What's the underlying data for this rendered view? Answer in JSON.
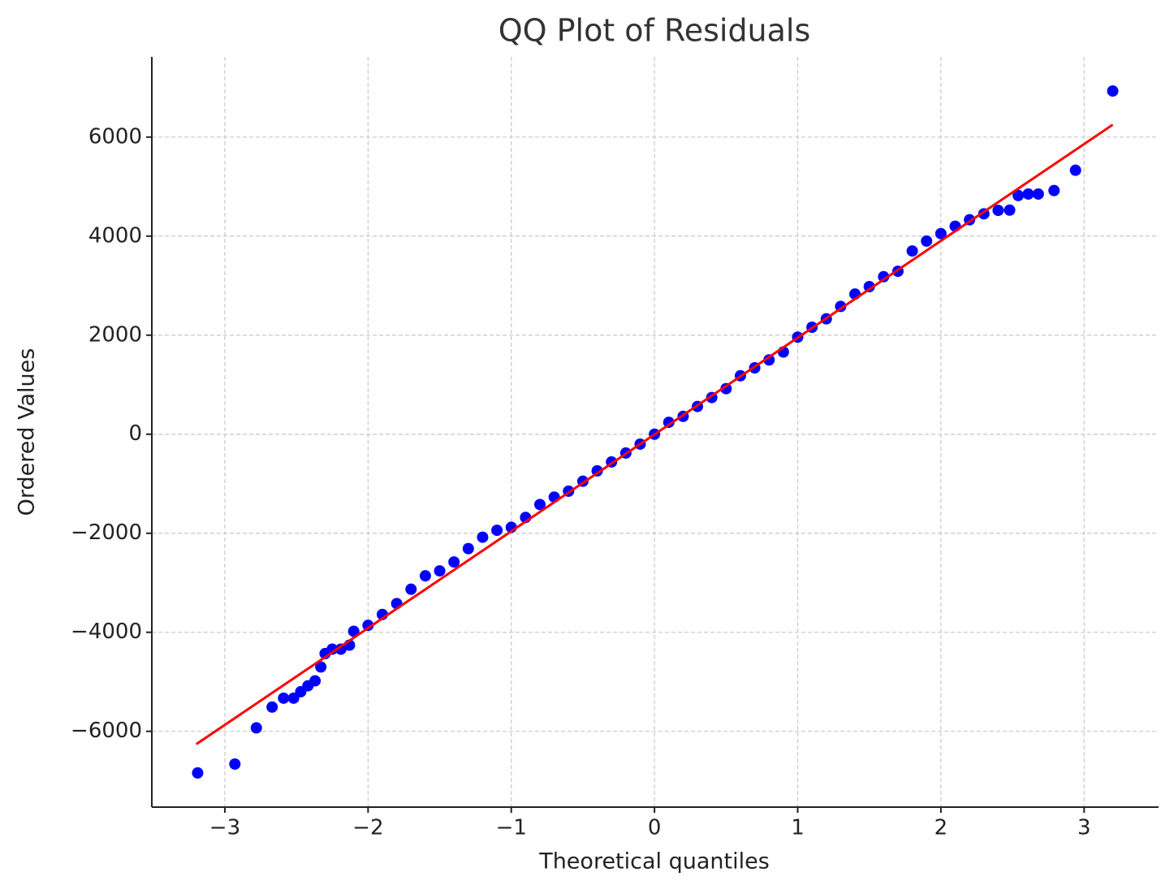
{
  "chart_data": {
    "type": "scatter",
    "title": "QQ Plot of Residuals",
    "x_label": "Theoretical quantiles",
    "y_label": "Ordered Values",
    "xlim": [
      -3.51,
      3.52
    ],
    "ylim": [
      -7530,
      7620
    ],
    "xticks": [
      {
        "value": -3,
        "label": "−3"
      },
      {
        "value": -2,
        "label": "−2"
      },
      {
        "value": -1,
        "label": "−1"
      },
      0,
      1,
      2,
      3
    ],
    "yticks": [
      {
        "value": -6000,
        "label": "−6000"
      },
      {
        "value": -4000,
        "label": "−4000"
      },
      {
        "value": -2000,
        "label": "−2000"
      },
      0,
      2000,
      4000,
      6000
    ],
    "grid": true,
    "points": {
      "color": "#0000ff",
      "x": [
        -3.19,
        -2.93,
        -2.78,
        -2.67,
        -2.59,
        -2.52,
        -2.47,
        -2.42,
        -2.37,
        -2.33,
        -2.3,
        -2.25,
        -2.19,
        -2.13,
        -2.1,
        -2.0,
        -1.9,
        -1.8,
        -1.7,
        -1.6,
        -1.5,
        -1.4,
        -1.3,
        -1.2,
        -1.1,
        -1.0,
        -0.9,
        -0.8,
        -0.7,
        -0.6,
        -0.5,
        -0.4,
        -0.3,
        -0.2,
        -0.1,
        0,
        0.1,
        0.2,
        0.3,
        0.4,
        0.5,
        0.6,
        0.7,
        0.8,
        0.9,
        1.0,
        1.1,
        1.2,
        1.3,
        1.4,
        1.5,
        1.6,
        1.7,
        1.8,
        1.9,
        2.0,
        2.1,
        2.2,
        2.3,
        2.4,
        2.48,
        2.54,
        2.61,
        2.68,
        2.79,
        2.94,
        3.2
      ],
      "y": [
        -6840,
        -6660,
        -5930,
        -5510,
        -5330,
        -5330,
        -5200,
        -5080,
        -4980,
        -4700,
        -4430,
        -4340,
        -4340,
        -4260,
        -3980,
        -3860,
        -3640,
        -3420,
        -3130,
        -2860,
        -2760,
        -2580,
        -2310,
        -2080,
        -1940,
        -1880,
        -1680,
        -1420,
        -1270,
        -1150,
        -950,
        -740,
        -560,
        -380,
        -200,
        0,
        240,
        360,
        560,
        740,
        920,
        1180,
        1340,
        1500,
        1660,
        1960,
        2160,
        2330,
        2580,
        2830,
        2980,
        3180,
        3290,
        3700,
        3900,
        4050,
        4200,
        4330,
        4450,
        4520,
        4525,
        4820,
        4850,
        4850,
        4920,
        5330,
        6930
      ]
    },
    "fit_line": {
      "color": "#ff0000",
      "x": [
        -3.2,
        3.2
      ],
      "y": [
        -6260,
        6250
      ]
    }
  }
}
